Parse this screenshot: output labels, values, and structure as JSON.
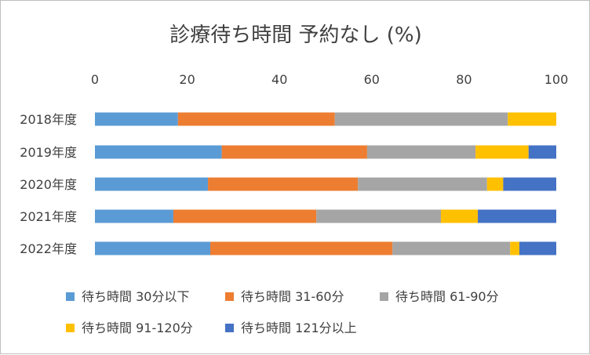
{
  "chart_data": {
    "type": "bar",
    "orientation": "horizontal",
    "stacked": true,
    "title": "診療待ち時間 予約なし (%)",
    "xlim": [
      0,
      100
    ],
    "xticks": [
      0,
      20,
      40,
      60,
      80,
      100
    ],
    "categories": [
      "2018年度",
      "2019年度",
      "2020年度",
      "2021年度",
      "2022年度"
    ],
    "series": [
      {
        "name": "待ち時間 30分以下",
        "color": "#5b9bd5",
        "values": [
          18,
          27.5,
          24.5,
          17,
          25
        ]
      },
      {
        "name": "待ち時間 31-60分",
        "color": "#ed7d31",
        "values": [
          34,
          31.5,
          32.5,
          31,
          39.5
        ]
      },
      {
        "name": "待ち時間 61-90分",
        "color": "#a5a5a5",
        "values": [
          37.5,
          23.5,
          28,
          27,
          25.5
        ]
      },
      {
        "name": "待ち時間 91-120分",
        "color": "#ffc000",
        "values": [
          10.5,
          11.5,
          3.5,
          8,
          2
        ]
      },
      {
        "name": "待ち時間 121分以上",
        "color": "#4472c4",
        "values": [
          0,
          6,
          11.5,
          17,
          8
        ]
      }
    ],
    "grid": false,
    "legend_position": "bottom"
  }
}
